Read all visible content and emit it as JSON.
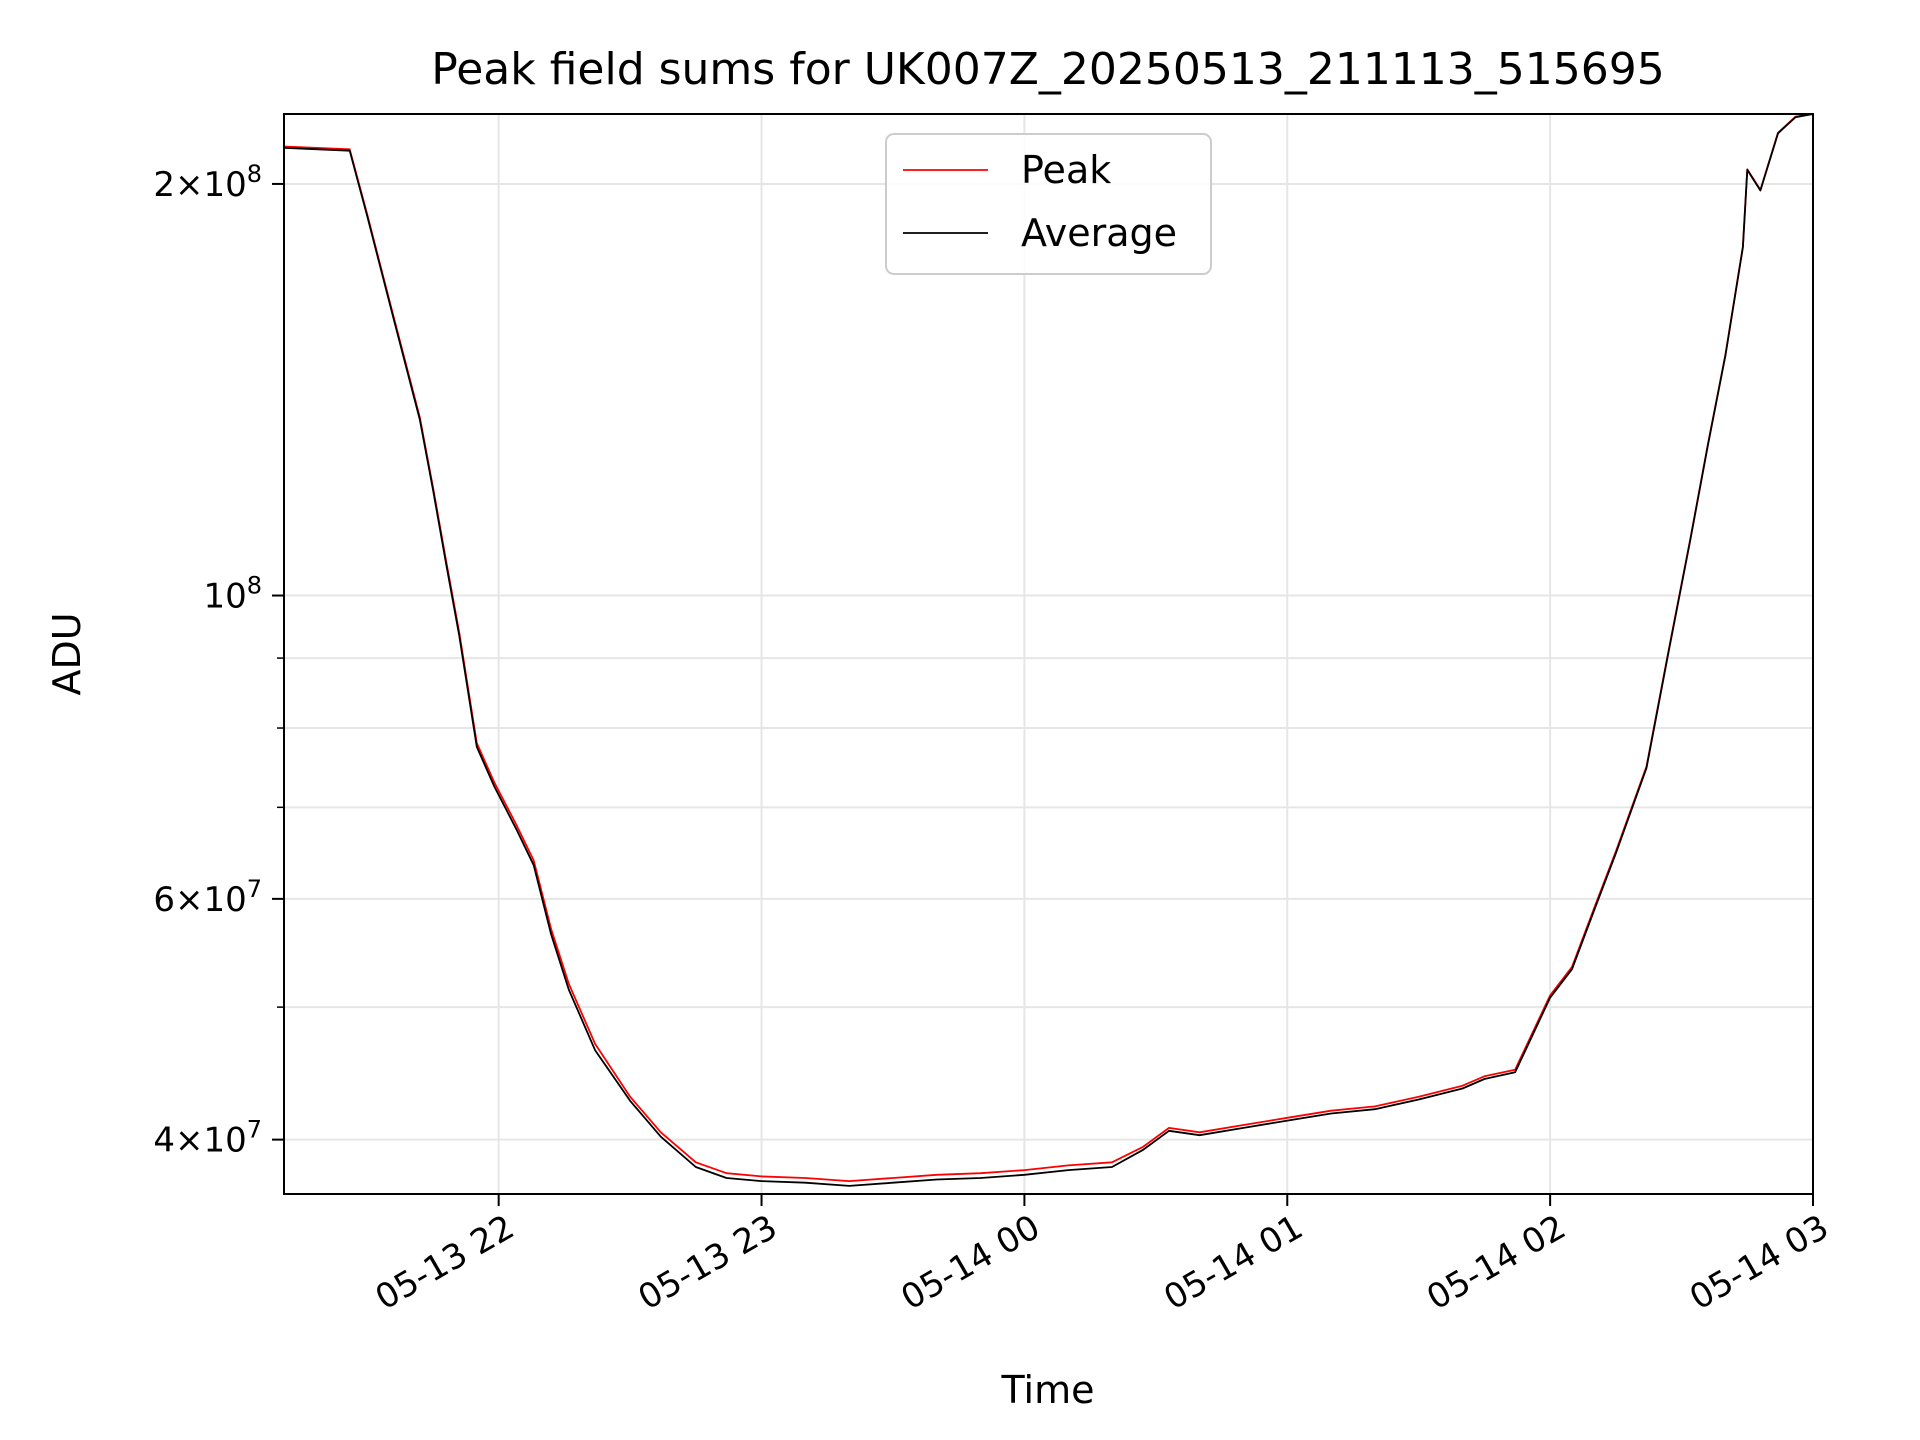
{
  "chart_data": {
    "type": "line",
    "title": "Peak field sums for UK007Z_20250513_211113_515695",
    "xlabel": "Time",
    "ylabel": "ADU",
    "y_scale": "log",
    "ylim": [
      36500000,
      225000000
    ],
    "xlim": [
      "05-13 21:11",
      "05-14 03:00"
    ],
    "x_ticks": [
      {
        "label": "05-13 22",
        "time": "05-13 22:00"
      },
      {
        "label": "05-13 23",
        "time": "05-13 23:00"
      },
      {
        "label": "05-14 00",
        "time": "05-14 00:00"
      },
      {
        "label": "05-14 01",
        "time": "05-14 01:00"
      },
      {
        "label": "05-14 02",
        "time": "05-14 02:00"
      },
      {
        "label": "05-14 03",
        "time": "05-14 03:00"
      }
    ],
    "y_ticks": [
      {
        "mant": "4",
        "exp": "7",
        "value": 40000000
      },
      {
        "mant": "6",
        "exp": "7",
        "value": 60000000
      },
      {
        "mant": "",
        "exp": "8",
        "value": 100000000
      },
      {
        "mant": "2",
        "exp": "8",
        "value": 200000000
      }
    ],
    "y_minor_ticks": [
      50000000,
      70000000,
      80000000,
      90000000
    ],
    "grid": true,
    "legend_position": "upper center",
    "series": [
      {
        "name": "Peak",
        "color": "#ff0000",
        "x": [
          "05-13 21:11",
          "05-13 21:26",
          "05-13 21:30",
          "05-13 21:36",
          "05-13 21:42",
          "05-13 21:45",
          "05-13 21:48",
          "05-13 21:51",
          "05-13 21:55",
          "05-13 21:59",
          "05-13 22:04",
          "05-13 22:08",
          "05-13 22:12",
          "05-13 22:16",
          "05-13 22:22",
          "05-13 22:30",
          "05-13 22:37",
          "05-13 22:45",
          "05-13 22:52",
          "05-13 23:00",
          "05-13 23:10",
          "05-13 23:20",
          "05-13 23:30",
          "05-13 23:40",
          "05-13 23:50",
          "05-14 00:00",
          "05-14 00:10",
          "05-14 00:20",
          "05-14 00:27",
          "05-14 00:33",
          "05-14 00:40",
          "05-14 00:50",
          "05-14 01:00",
          "05-14 01:10",
          "05-14 01:20",
          "05-14 01:30",
          "05-14 01:40",
          "05-14 01:45",
          "05-14 01:52",
          "05-14 02:00",
          "05-14 02:05",
          "05-14 02:10",
          "05-14 02:15",
          "05-14 02:22",
          "05-14 02:27",
          "05-14 02:32",
          "05-14 02:36",
          "05-14 02:40",
          "05-14 02:44",
          "05-14 02:45",
          "05-14 02:48",
          "05-14 02:52",
          "05-14 02:56",
          "05-14 03:00"
        ],
        "y": [
          213000000,
          212000000,
          190000000,
          160000000,
          135000000,
          120000000,
          106000000,
          94000000,
          78000000,
          73000000,
          68000000,
          64000000,
          57000000,
          52000000,
          47000000,
          43000000,
          40500000,
          38500000,
          37800000,
          37600000,
          37500000,
          37300000,
          37500000,
          37700000,
          37800000,
          38000000,
          38300000,
          38500000,
          39500000,
          40800000,
          40500000,
          41000000,
          41500000,
          42000000,
          42300000,
          43000000,
          43800000,
          44500000,
          45000000,
          51000000,
          53500000,
          59000000,
          65000000,
          75000000,
          91000000,
          110000000,
          129000000,
          150000000,
          180000000,
          205000000,
          198000000,
          218000000,
          224000000,
          225000000
        ]
      },
      {
        "name": "Average",
        "color": "#000000",
        "x": [
          "05-13 21:11",
          "05-13 21:26",
          "05-13 21:30",
          "05-13 21:36",
          "05-13 21:42",
          "05-13 21:45",
          "05-13 21:48",
          "05-13 21:51",
          "05-13 21:55",
          "05-13 21:59",
          "05-13 22:04",
          "05-13 22:08",
          "05-13 22:12",
          "05-13 22:16",
          "05-13 22:22",
          "05-13 22:30",
          "05-13 22:37",
          "05-13 22:45",
          "05-13 22:52",
          "05-13 23:00",
          "05-13 23:10",
          "05-13 23:20",
          "05-13 23:30",
          "05-13 23:40",
          "05-13 23:50",
          "05-14 00:00",
          "05-14 00:10",
          "05-14 00:20",
          "05-14 00:27",
          "05-14 00:33",
          "05-14 00:40",
          "05-14 00:50",
          "05-14 01:00",
          "05-14 01:10",
          "05-14 01:20",
          "05-14 01:30",
          "05-14 01:40",
          "05-14 01:45",
          "05-14 01:52",
          "05-14 02:00",
          "05-14 02:05",
          "05-14 02:10",
          "05-14 02:15",
          "05-14 02:22",
          "05-14 02:27",
          "05-14 02:32",
          "05-14 02:36",
          "05-14 02:40",
          "05-14 02:44",
          "05-14 02:45",
          "05-14 02:48",
          "05-14 02:52",
          "05-14 02:56",
          "05-14 03:00"
        ],
        "y": [
          212500000,
          211500000,
          189500000,
          159500000,
          134500000,
          119500000,
          105500000,
          93500000,
          77500000,
          72500000,
          67500000,
          63500000,
          56500000,
          51500000,
          46500000,
          42700000,
          40200000,
          38200000,
          37500000,
          37300000,
          37200000,
          37000000,
          37200000,
          37400000,
          37500000,
          37700000,
          38000000,
          38200000,
          39300000,
          40600000,
          40300000,
          40800000,
          41300000,
          41800000,
          42100000,
          42800000,
          43600000,
          44300000,
          44800000,
          50800000,
          53300000,
          58800000,
          64800000,
          74800000,
          90800000,
          109800000,
          128800000,
          149800000,
          179800000,
          204800000,
          197800000,
          217800000,
          223800000,
          225000000
        ]
      }
    ]
  }
}
